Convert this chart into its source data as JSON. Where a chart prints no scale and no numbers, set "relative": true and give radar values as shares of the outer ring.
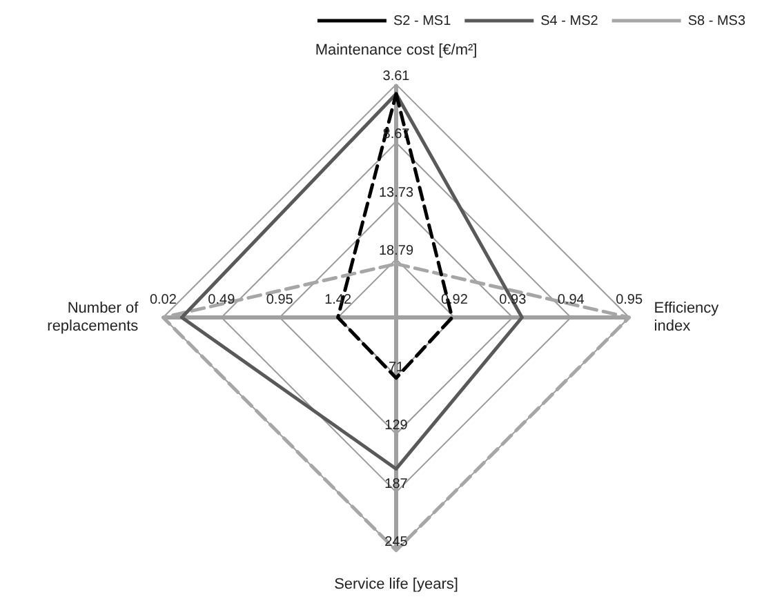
{
  "chart_data": {
    "type": "radar",
    "relative": true,
    "grid": true,
    "legend": "top right",
    "marker": "none",
    "categories": [
      "Maintenance cost [€/m²]",
      "Efficiency index",
      "Service life [years]",
      "Number of replacements"
    ],
    "annotations": [
      "18.79",
      "13.73",
      "8.67",
      "3.61",
      "0.92",
      "0.93",
      "0.94",
      "0.95",
      "71",
      "129",
      "187",
      "245",
      "1.42",
      "0.95",
      "0.49",
      "0.02"
    ],
    "series": [
      {
        "name": "S2 - MS1",
        "color": "#000000",
        "line_style": "dashed",
        "values": [
          0.96,
          0.24,
          0.26,
          0.25
        ]
      },
      {
        "name": "S4 - MS2",
        "color": "#595959",
        "line_style": "solid",
        "values": [
          0.96,
          0.54,
          0.65,
          0.92
        ]
      },
      {
        "name": "S8 - MS3",
        "color": "#a6a6a6",
        "line_style": "dashed",
        "values": [
          0.23,
          1.0,
          1.0,
          1.0
        ]
      }
    ]
  }
}
